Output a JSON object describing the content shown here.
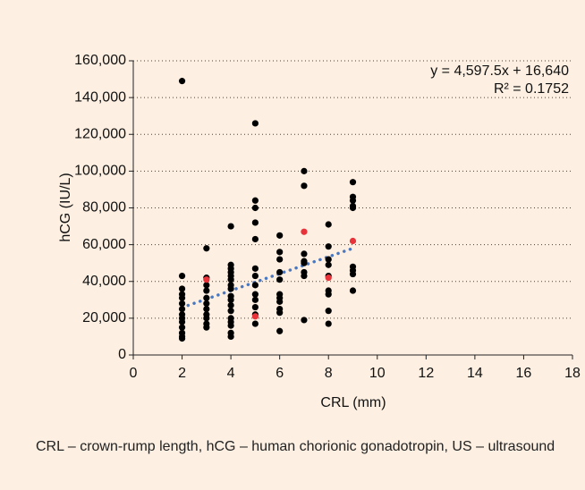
{
  "chart_data": {
    "type": "scatter",
    "xlabel": "CRL (mm)",
    "ylabel": "hCG (IU/L)",
    "annotations": [
      "y = 4,597.5x + 16,640",
      "R² = 0.1752"
    ],
    "caption": "CRL – crown-rump length, hCG – human chorionic gonadotropin, US – ultrasound",
    "xlim": [
      0,
      18
    ],
    "xticks": [
      0,
      2,
      4,
      6,
      8,
      10,
      12,
      14,
      16,
      18
    ],
    "ylim": [
      0,
      160000
    ],
    "yticks": [
      0,
      {
        "value": 20000,
        "label": "20,000"
      },
      {
        "value": 40000,
        "label": "40,000"
      },
      {
        "value": 60000,
        "label": "60,000"
      },
      {
        "value": 80000,
        "label": "80,000"
      },
      {
        "value": 100000,
        "label": "100,000"
      },
      {
        "value": 120000,
        "label": "120,000"
      },
      {
        "value": 140000,
        "label": "140,000"
      },
      {
        "value": 160000,
        "label": "160,000"
      }
    ],
    "grid": true,
    "series": [
      {
        "color": "#000000",
        "x": [
          2,
          2,
          2,
          2,
          2,
          2,
          2,
          2,
          2,
          2,
          2,
          2,
          2,
          2,
          3,
          3,
          3,
          3,
          3,
          3,
          3,
          3,
          3,
          3,
          3,
          4,
          4,
          4,
          4,
          4,
          4,
          4,
          4,
          4,
          4,
          4,
          4,
          4,
          4,
          4,
          4,
          4,
          5,
          5,
          5,
          5,
          5,
          5,
          5,
          5,
          5,
          5,
          5,
          5,
          5,
          6,
          6,
          6,
          6,
          6,
          6,
          6,
          6,
          6,
          6,
          6,
          7,
          7,
          7,
          7,
          7,
          7,
          7,
          7,
          8,
          8,
          8,
          8,
          8,
          8,
          8,
          8,
          8,
          9,
          9,
          9,
          9,
          9,
          9,
          9,
          9,
          9
        ],
        "values": [
          149000,
          43000,
          36000,
          33000,
          31000,
          28000,
          25000,
          22000,
          20000,
          18000,
          15000,
          12000,
          10000,
          9000,
          58000,
          42000,
          38000,
          35000,
          31000,
          28000,
          25000,
          22000,
          20000,
          17000,
          15000,
          70000,
          49000,
          47000,
          45000,
          43000,
          41000,
          38000,
          36000,
          32000,
          30000,
          27000,
          24000,
          20000,
          18000,
          16000,
          12000,
          10000,
          126000,
          84000,
          80000,
          72000,
          63000,
          47000,
          43000,
          38000,
          33000,
          30000,
          26000,
          22000,
          17000,
          65000,
          56000,
          52000,
          45000,
          41000,
          33000,
          31000,
          29000,
          25000,
          23000,
          13000,
          100000,
          92000,
          55000,
          51000,
          50000,
          45000,
          43000,
          19000,
          71000,
          59000,
          52000,
          49000,
          43000,
          35000,
          33000,
          24000,
          17000,
          94000,
          86000,
          84000,
          81000,
          80000,
          48000,
          46000,
          44000,
          35000
        ]
      },
      {
        "color": "#e8333a",
        "x": [
          3,
          5,
          7,
          8,
          9
        ],
        "values": [
          41000,
          21000,
          67000,
          42000,
          62000
        ]
      }
    ],
    "trendline": {
      "color": "#4a78c0",
      "x": [
        2,
        9
      ],
      "values": [
        25835,
        58018
      ]
    }
  }
}
